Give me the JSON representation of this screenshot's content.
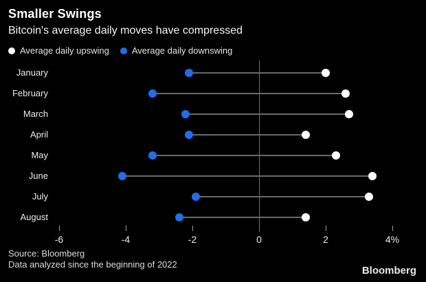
{
  "header": {
    "title": "Smaller Swings",
    "subtitle": "Bitcoin's average daily moves have compressed"
  },
  "legend": {
    "items": [
      {
        "label": "Average daily upswing",
        "color": "#ffffff"
      },
      {
        "label": "Average daily downswing",
        "color": "#1f6fe8"
      }
    ]
  },
  "chart_data": {
    "type": "scatter",
    "subtype": "dumbbell",
    "title": "Smaller Swings",
    "subtitle": "Bitcoin's average daily moves have compressed",
    "categories": [
      "January",
      "February",
      "March",
      "April",
      "May",
      "June",
      "July",
      "August"
    ],
    "series": [
      {
        "name": "Average daily upswing",
        "color": "#ffffff",
        "values": [
          2.0,
          2.6,
          2.7,
          1.4,
          2.3,
          3.4,
          3.3,
          1.4
        ]
      },
      {
        "name": "Average daily downswing",
        "color": "#1f6fe8",
        "values": [
          -2.1,
          -3.2,
          -2.2,
          -2.1,
          -3.2,
          -4.1,
          -1.9,
          -2.4
        ]
      }
    ],
    "x_axis": {
      "tick_values": [
        -6,
        -4,
        -2,
        0,
        2,
        4
      ],
      "tick_labels": [
        "-6",
        "-4",
        "-2",
        "0",
        "2",
        "4%"
      ],
      "range": [
        -6.5,
        4.6
      ],
      "unit": "%"
    },
    "zero_line": true,
    "grid": false,
    "legend_position": "top",
    "connector_color": "#6a6a6a",
    "background": "#000000"
  },
  "footer": {
    "source": "Source: Bloomberg",
    "note": "Data analyzed since the beginning of 2022",
    "brand": "Bloomberg"
  }
}
